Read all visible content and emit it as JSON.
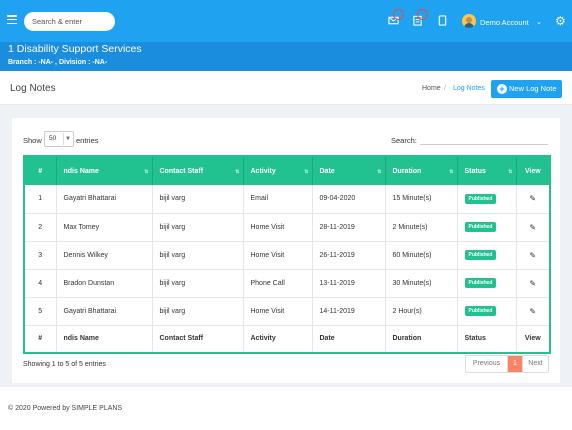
{
  "topbar": {
    "search_placeholder": "Search & enter",
    "account_label": "Demo Account",
    "icons": [
      "menu-icon",
      "mail-icon",
      "clipboard-icon",
      "tablet-icon",
      "gear-icon"
    ]
  },
  "org": {
    "title": "1 Disability Support Services",
    "subtitle": "Branch : -NA- , Division : -NA-"
  },
  "header": {
    "page_title": "Log Notes",
    "breadcrumb_home": "Home",
    "breadcrumb_sep": "/",
    "breadcrumb_current": "Log Notes",
    "new_button": "New Log Note"
  },
  "table_controls": {
    "show_label": "Show",
    "entries_value": "50",
    "entries_label": "entries",
    "search_label": "Search:"
  },
  "table": {
    "columns": [
      "#",
      "ndis Name",
      "Contact Staff",
      "Activity",
      "Date",
      "Duration",
      "Status",
      "View"
    ],
    "rows": [
      [
        "1",
        "Gayatri Bhattarai",
        "bijil varg",
        "Email",
        "09-04-2020",
        "15 Minute(s)",
        "Published"
      ],
      [
        "2",
        "Max Tomey",
        "bijil varg",
        "Home Visit",
        "28-11-2019",
        "2 Minute(s)",
        "Published"
      ],
      [
        "3",
        "Dennis Wilkey",
        "bijil varg",
        "Home Visit",
        "26-11-2019",
        "60 Minute(s)",
        "Published"
      ],
      [
        "4",
        "Bradon Dunstan",
        "bijil varg",
        "Phone Call",
        "13-11-2019",
        "30 Minute(s)",
        "Published"
      ],
      [
        "5",
        "Gayatri Bhattarai",
        "bijil varg",
        "Home Visit",
        "14-11-2019",
        "2 Hour(s)",
        "Published"
      ]
    ]
  },
  "pagination": {
    "info": "Showing 1 to 5 of 5 entries",
    "previous": "Previous",
    "current": "1",
    "next": "Next"
  },
  "footer": {
    "text": "© 2020 Powered by SIMPLE PLANS"
  },
  "colors": {
    "topbar": "#1fa2f0",
    "orgbar": "#1b8ddf",
    "table_accent": "#21c28f",
    "pager_active": "#f98466"
  }
}
